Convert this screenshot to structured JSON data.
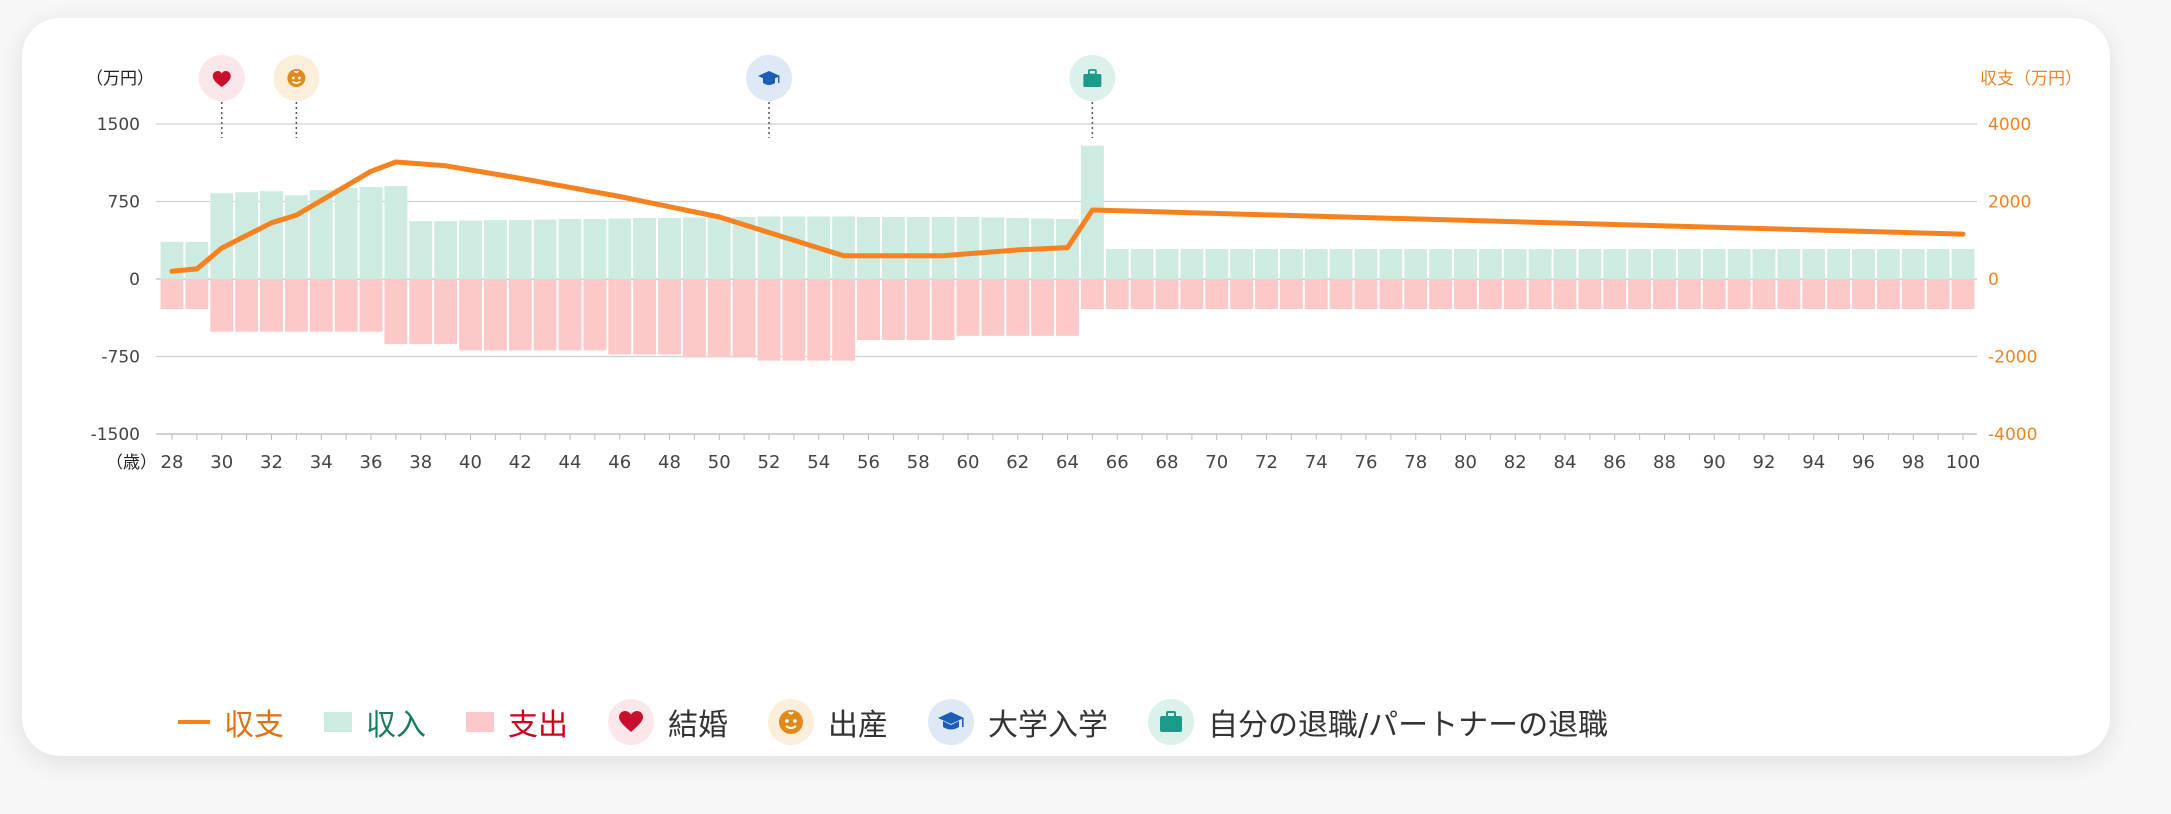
{
  "chart_data": {
    "type": "bar",
    "left_axis": {
      "unit_label": "（万円）",
      "ticks": [
        1500,
        750,
        0,
        -750,
        -1500
      ],
      "ylim": [
        -1500,
        1500
      ]
    },
    "right_axis": {
      "unit_label": "収支（万円）",
      "ticks": [
        4000,
        2000,
        0,
        -2000,
        -4000
      ],
      "ylim": [
        -4000,
        4000
      ]
    },
    "x_axis": {
      "unit_label": "（歳）",
      "tick_labels": [
        "28",
        "30",
        "32",
        "34",
        "36",
        "38",
        "40",
        "42",
        "44",
        "46",
        "48",
        "50",
        "52",
        "54",
        "56",
        "58",
        "60",
        "62",
        "64",
        "66",
        "68",
        "70",
        "72",
        "74",
        "76",
        "78",
        "80",
        "82",
        "84",
        "86",
        "88",
        "90",
        "92",
        "94",
        "96",
        "98",
        "100"
      ]
    },
    "ages": [
      28,
      29,
      30,
      31,
      32,
      33,
      34,
      35,
      36,
      37,
      38,
      39,
      40,
      41,
      42,
      43,
      44,
      45,
      46,
      47,
      48,
      49,
      50,
      51,
      52,
      53,
      54,
      55,
      56,
      57,
      58,
      59,
      60,
      61,
      62,
      63,
      64,
      65,
      66,
      67,
      68,
      69,
      70,
      71,
      72,
      73,
      74,
      75,
      76,
      77,
      78,
      79,
      80,
      81,
      82,
      83,
      84,
      85,
      86,
      87,
      88,
      89,
      90,
      91,
      92,
      93,
      94,
      95,
      96,
      97,
      98,
      99,
      100
    ],
    "series": [
      {
        "name": "収入",
        "color": "#cdebe0",
        "values": [
          360,
          360,
          830,
          840,
          850,
          810,
          860,
          880,
          890,
          900,
          560,
          560,
          565,
          570,
          570,
          575,
          580,
          580,
          585,
          590,
          590,
          595,
          600,
          600,
          605,
          605,
          605,
          605,
          600,
          600,
          600,
          600,
          600,
          595,
          590,
          585,
          580,
          1290,
          290,
          290,
          290,
          290,
          290,
          290,
          290,
          290,
          290,
          290,
          290,
          290,
          290,
          290,
          290,
          290,
          290,
          290,
          290,
          290,
          290,
          290,
          290,
          290,
          290,
          290,
          290,
          290,
          290,
          290,
          290,
          290,
          290,
          290,
          290
        ]
      },
      {
        "name": "支出",
        "color": "#fdc8c8",
        "values": [
          -290,
          -290,
          -510,
          -510,
          -510,
          -510,
          -510,
          -510,
          -510,
          -630,
          -630,
          -630,
          -690,
          -690,
          -690,
          -690,
          -690,
          -690,
          -730,
          -730,
          -730,
          -760,
          -760,
          -760,
          -790,
          -790,
          -790,
          -790,
          -590,
          -590,
          -590,
          -590,
          -550,
          -550,
          -550,
          -550,
          -550,
          -290,
          -290,
          -290,
          -290,
          -290,
          -290,
          -290,
          -290,
          -290,
          -290,
          -290,
          -290,
          -290,
          -290,
          -290,
          -290,
          -290,
          -290,
          -290,
          -290,
          -290,
          -290,
          -290,
          -290,
          -290,
          -290,
          -290,
          -290,
          -290,
          -290,
          -290,
          -290,
          -290,
          -290,
          -290,
          -290
        ]
      },
      {
        "name": "収支",
        "color": "#f5821f",
        "axis": "right",
        "points": [
          [
            28,
            200
          ],
          [
            29,
            260
          ],
          [
            30,
            800
          ],
          [
            32,
            1450
          ],
          [
            33,
            1650
          ],
          [
            36,
            2780
          ],
          [
            37,
            3020
          ],
          [
            39,
            2920
          ],
          [
            42,
            2600
          ],
          [
            46,
            2130
          ],
          [
            50,
            1600
          ],
          [
            53,
            1000
          ],
          [
            55,
            600
          ],
          [
            59,
            600
          ],
          [
            60,
            650
          ],
          [
            62,
            750
          ],
          [
            64,
            810
          ],
          [
            65,
            1780
          ],
          [
            100,
            1160
          ]
        ]
      }
    ],
    "events": [
      {
        "label": "結婚",
        "age": 30,
        "icon": "heart-icon",
        "color": "#c8102e",
        "bg": "#fbe6e9"
      },
      {
        "label": "出産",
        "age": 33,
        "icon": "baby-icon",
        "color": "#e08a1a",
        "bg": "#fbefdc"
      },
      {
        "label": "大学入学",
        "age": 52,
        "icon": "graduation-cap-icon",
        "color": "#1a5fb4",
        "bg": "#dfe8f5"
      },
      {
        "label": "自分の退職/パートナーの退職",
        "age": 65,
        "icon": "briefcase-icon",
        "color": "#1c9a8a",
        "bg": "#dcf0ec"
      }
    ]
  },
  "legend": {
    "balance_label": "収支",
    "income_label": "収入",
    "expense_label": "支出",
    "balance_color": "#f5821f",
    "income_color": "#1a7a5e",
    "expense_color": "#d0021b",
    "marriage_label": "結婚",
    "birth_label": "出産",
    "university_label": "大学入学",
    "retirement_label": "自分の退職/パートナーの退職"
  }
}
